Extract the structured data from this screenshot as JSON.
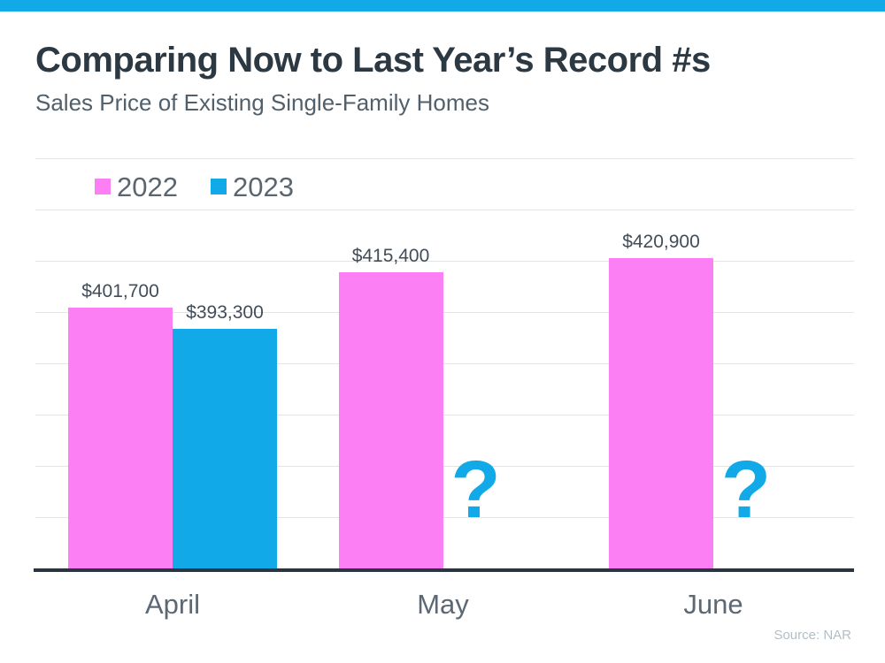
{
  "page": {
    "topbar_color": "#12a9e8",
    "background": "#ffffff"
  },
  "header": {
    "title": "Comparing Now to Last Year’s Record #s",
    "subtitle": "Sales Price of Existing Single-Family Homes"
  },
  "legend": [
    {
      "label": "2022",
      "color": "#fc80f4"
    },
    {
      "label": "2023",
      "color": "#12a9e8"
    }
  ],
  "source": {
    "label": "Source: NAR"
  },
  "chart_data": {
    "type": "bar",
    "title": "Comparing Now to Last Year’s Record #s",
    "subtitle": "Sales Price of Existing Single-Family Homes",
    "categories": [
      "April",
      "May",
      "June"
    ],
    "series": [
      {
        "name": "2022",
        "color": "#fc80f4",
        "values": [
          401700,
          415400,
          420900
        ],
        "labels": [
          "$401,700",
          "$415,400",
          "$420,900"
        ]
      },
      {
        "name": "2023",
        "color": "#12a9e8",
        "values": [
          393300,
          null,
          null
        ],
        "labels": [
          "$393,300",
          null,
          null
        ]
      }
    ],
    "missing_value_marker": "?",
    "missing_marker_color": "#12a9e8",
    "ylim": [
      300000,
      460000
    ],
    "gridline_step": 20000,
    "grid": true,
    "legend_position": "top-left",
    "xlabel": "",
    "ylabel": "",
    "source": "Source: NAR"
  }
}
